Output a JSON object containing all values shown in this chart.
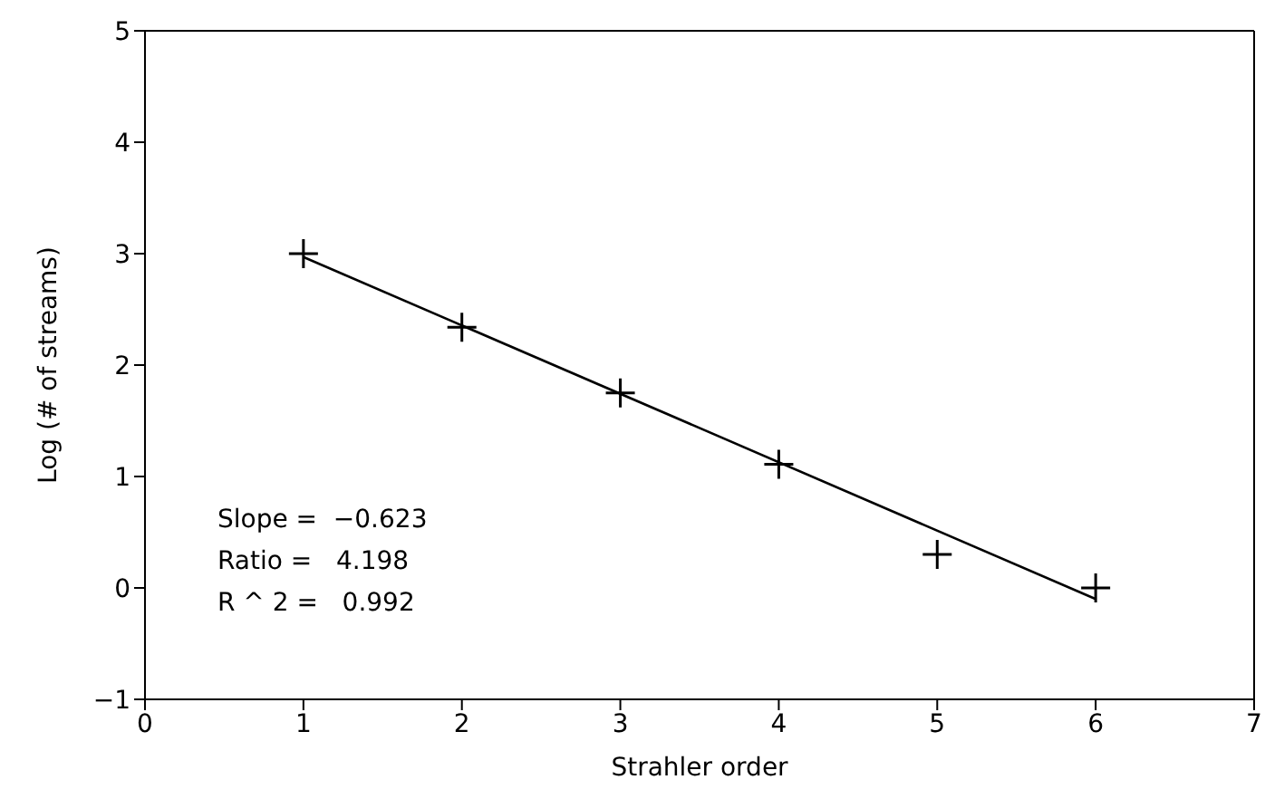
{
  "chart_data": {
    "type": "scatter",
    "xlabel": "Strahler order",
    "ylabel": "Log (# of streams)",
    "xlim": [
      0,
      7
    ],
    "ylim": [
      -1,
      5
    ],
    "xticks": [
      0,
      1,
      2,
      3,
      4,
      5,
      6,
      7
    ],
    "yticks": [
      -1,
      0,
      1,
      2,
      3,
      4,
      5
    ],
    "marker": "cross",
    "annotations": [
      "Slope =  −0.623",
      "Ratio =   4.198",
      "R ^ 2 =   0.992"
    ],
    "series": [
      {
        "color": "#000000",
        "x": [
          1,
          2,
          3,
          4,
          5,
          6
        ],
        "values": [
          3.0,
          2.34,
          1.75,
          1.11,
          0.3,
          0.0
        ]
      },
      {
        "type": "line",
        "color": "#000000",
        "marker": "none",
        "line_style": "solid",
        "x": [
          1,
          6
        ],
        "values": [
          2.97,
          -0.1
        ]
      }
    ]
  }
}
